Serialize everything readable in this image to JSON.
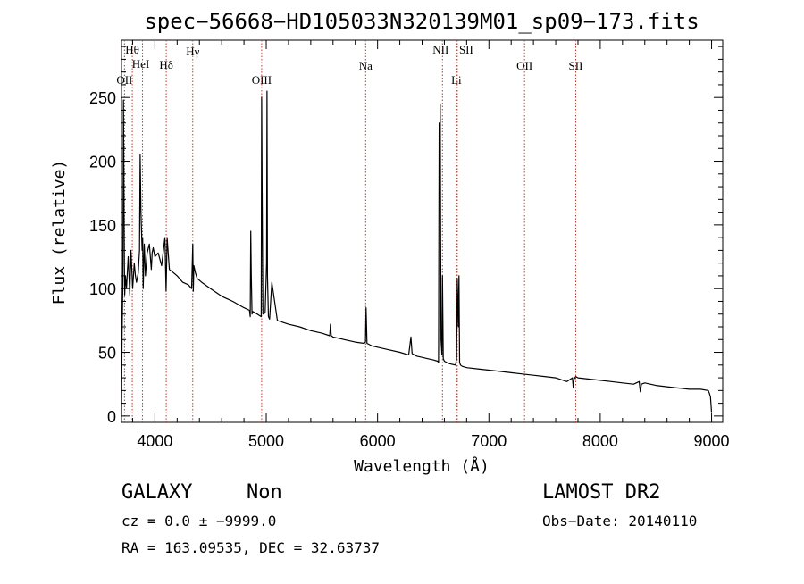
{
  "chart_data": {
    "type": "line",
    "title": "spec−56668−HD105033N320139M01_sp09−173.fits",
    "xlabel": "Wavelength (Å)",
    "ylabel": "Flux (relative)",
    "xlim": [
      3700,
      9100
    ],
    "ylim": [
      -5,
      295
    ],
    "xticks": [
      4000,
      5000,
      6000,
      7000,
      8000,
      9000
    ],
    "yticks": [
      0,
      50,
      100,
      150,
      200,
      250
    ],
    "grid": false,
    "series": [
      {
        "x": [
          3700,
          3705,
          3712,
          3718,
          3722,
          3726,
          3729,
          3735,
          3745,
          3760,
          3775,
          3785,
          3800,
          3815,
          3825,
          3835,
          3850,
          3862,
          3868,
          3875,
          3885,
          3890,
          3895,
          3905,
          3915,
          3930,
          3950,
          3968,
          3975,
          3985,
          4000,
          4030,
          4060,
          4090,
          4100,
          4105,
          4110,
          4130,
          4160,
          4200,
          4250,
          4300,
          4330,
          4340,
          4345,
          4350,
          4365,
          4380,
          4420,
          4500,
          4600,
          4700,
          4800,
          4850,
          4856,
          4861,
          4866,
          4872,
          4880,
          4920,
          4955,
          4959,
          4963,
          4970,
          4990,
          5003,
          5007,
          5011,
          5020,
          5030,
          5050,
          5100,
          5200,
          5300,
          5400,
          5500,
          5570,
          5577,
          5584,
          5600,
          5700,
          5800,
          5880,
          5891,
          5897,
          5905,
          5950,
          6000,
          6100,
          6200,
          6280,
          6300,
          6310,
          6350,
          6400,
          6450,
          6500,
          6540,
          6548,
          6553,
          6560,
          6563,
          6566,
          6570,
          6578,
          6583,
          6590,
          6600,
          6620,
          6650,
          6700,
          6710,
          6716,
          6725,
          6731,
          6737,
          6745,
          6760,
          6800,
          6900,
          7000,
          7100,
          7200,
          7300,
          7400,
          7500,
          7600,
          7700,
          7750,
          7758,
          7765,
          7780,
          7800,
          7900,
          8000,
          8100,
          8200,
          8300,
          8350,
          8360,
          8370,
          8400,
          8500,
          8600,
          8700,
          8800,
          8900,
          8970,
          8980,
          8990,
          9000
        ],
        "values": [
          0,
          60,
          102,
          248,
          185,
          120,
          95,
          110,
          100,
          125,
          95,
          130,
          100,
          120,
          110,
          105,
          112,
          130,
          205,
          160,
          130,
          140,
          100,
          135,
          110,
          128,
          135,
          115,
          128,
          132,
          125,
          128,
          118,
          140,
          98,
          118,
          140,
          115,
          113,
          110,
          105,
          103,
          100,
          135,
          98,
          118,
          112,
          108,
          105,
          100,
          94,
          90,
          85,
          83,
          78,
          145,
          110,
          80,
          82,
          80,
          78,
          250,
          180,
          80,
          81,
          120,
          255,
          110,
          78,
          76,
          105,
          75,
          72,
          70,
          67,
          65,
          63,
          72,
          63,
          62,
          60,
          58,
          57,
          58,
          85,
          57,
          55,
          54,
          52,
          50,
          48,
          62,
          49,
          47,
          46,
          45,
          44,
          43,
          42,
          230,
          180,
          245,
          150,
          60,
          48,
          110,
          45,
          43,
          42,
          41,
          40,
          45,
          108,
          70,
          110,
          42,
          40,
          39,
          38,
          37,
          36,
          35,
          34,
          33,
          32,
          31,
          30,
          27,
          30,
          22,
          29,
          31,
          30,
          29,
          28,
          27,
          26,
          25,
          27,
          19,
          25,
          26,
          24,
          23,
          22,
          21,
          21,
          20,
          18,
          15,
          3
        ]
      }
    ],
    "annotations": [
      {
        "label": "Hθ",
        "wavelength": 3797
      },
      {
        "label": "OII",
        "wavelength": 3727
      },
      {
        "label": "HeI",
        "wavelength": 3889
      },
      {
        "label": "Hδ",
        "wavelength": 4102
      },
      {
        "label": "Hγ",
        "wavelength": 4340
      },
      {
        "label": "OIII",
        "wavelength": 4959
      },
      {
        "label": "Na",
        "wavelength": 5893
      },
      {
        "label": "NII",
        "wavelength": 6583
      },
      {
        "label": "SII",
        "wavelength": 6716
      },
      {
        "label": "Li",
        "wavelength": 6708
      },
      {
        "label": "OII",
        "wavelength": 7320
      },
      {
        "label": "SII",
        "wavelength": 7780
      }
    ]
  },
  "info": {
    "class": "GALAXY",
    "subclass": "Non",
    "cz": "cz = 0.0 ± −9999.0",
    "radec": "RA = 163.09535, DEC =  32.63737",
    "survey": "LAMOST DR2",
    "obsdate": "Obs−Date: 20140110"
  }
}
